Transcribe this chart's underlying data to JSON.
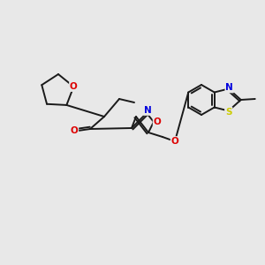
{
  "background_color": "#e8e8e8",
  "bond_color": "#1a1a1a",
  "atom_colors": {
    "N": "#0000dd",
    "O": "#dd0000",
    "S": "#cccc00",
    "C": "#1a1a1a"
  },
  "font_size_atom": 7.5,
  "figsize": [
    3.0,
    3.0
  ],
  "dpi": 100
}
